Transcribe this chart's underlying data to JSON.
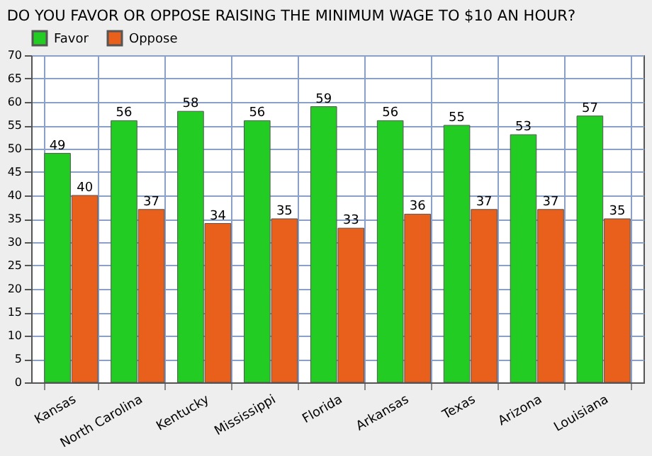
{
  "chart_data": {
    "type": "bar",
    "title": "DO YOU FAVOR OR OPPOSE RAISING THE MINIMUM WAGE TO $10 AN HOUR?",
    "categories": [
      "Kansas",
      "North Carolina",
      "Kentucky",
      "Mississippi",
      "Florida",
      "Arkansas",
      "Texas",
      "Arizona",
      "Louisiana"
    ],
    "series": [
      {
        "name": "Favor",
        "color": "#22cc22",
        "values": [
          49,
          56,
          58,
          56,
          59,
          56,
          55,
          53,
          57
        ]
      },
      {
        "name": "Oppose",
        "color": "#e8601c",
        "values": [
          40,
          37,
          34,
          35,
          33,
          36,
          37,
          37,
          35
        ]
      }
    ],
    "ylim": [
      0,
      70
    ],
    "yticks": [
      0,
      5,
      10,
      15,
      20,
      25,
      30,
      35,
      40,
      45,
      50,
      55,
      60,
      65,
      70
    ],
    "grid": true,
    "legend": "top left",
    "data_labels": true
  }
}
